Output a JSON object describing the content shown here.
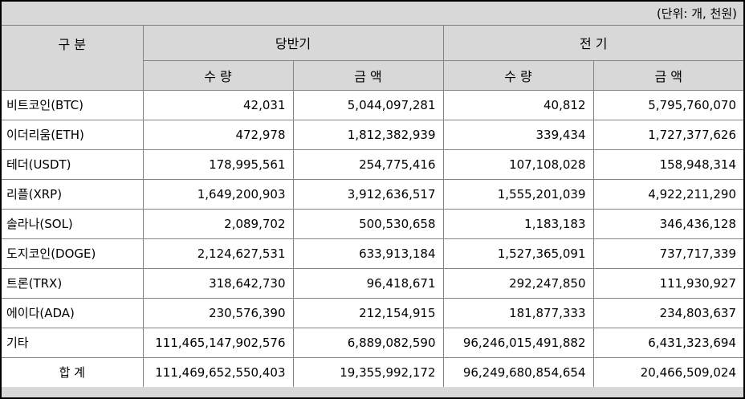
{
  "unit_note": "(단위: 개, 천원)",
  "colors": {
    "sheet_background": "#d8d8d8",
    "cell_background": "#ffffff",
    "grid_line": "#848484",
    "outer_border": "#000000",
    "text": "#000000"
  },
  "table": {
    "category_header": "구 분",
    "current_period_header": "당반기",
    "previous_period_header": "전 기",
    "quantity_header": "수 량",
    "amount_header": "금 액",
    "rows": [
      {
        "label": "비트코인(BTC)",
        "cur_qty": "42,031",
        "cur_amt": "5,044,097,281",
        "prev_qty": "40,812",
        "prev_amt": "5,795,760,070"
      },
      {
        "label": "이더리움(ETH)",
        "cur_qty": "472,978",
        "cur_amt": "1,812,382,939",
        "prev_qty": "339,434",
        "prev_amt": "1,727,377,626"
      },
      {
        "label": "테더(USDT)",
        "cur_qty": "178,995,561",
        "cur_amt": "254,775,416",
        "prev_qty": "107,108,028",
        "prev_amt": "158,948,314"
      },
      {
        "label": "리플(XRP)",
        "cur_qty": "1,649,200,903",
        "cur_amt": "3,912,636,517",
        "prev_qty": "1,555,201,039",
        "prev_amt": "4,922,211,290"
      },
      {
        "label": "솔라나(SOL)",
        "cur_qty": "2,089,702",
        "cur_amt": "500,530,658",
        "prev_qty": "1,183,183",
        "prev_amt": "346,436,128"
      },
      {
        "label": "도지코인(DOGE)",
        "cur_qty": "2,124,627,531",
        "cur_amt": "633,913,184",
        "prev_qty": "1,527,365,091",
        "prev_amt": "737,717,339"
      },
      {
        "label": "트론(TRX)",
        "cur_qty": "318,642,730",
        "cur_amt": "96,418,671",
        "prev_qty": "292,247,850",
        "prev_amt": "111,930,927"
      },
      {
        "label": "에이다(ADA)",
        "cur_qty": "230,576,390",
        "cur_amt": "212,154,915",
        "prev_qty": "181,877,333",
        "prev_amt": "234,803,637"
      },
      {
        "label": "기타",
        "cur_qty": "111,465,147,902,576",
        "cur_amt": "6,889,082,590",
        "prev_qty": "96,246,015,491,882",
        "prev_amt": "6,431,323,694"
      }
    ],
    "total": {
      "label": "합 계",
      "cur_qty": "111,469,652,550,403",
      "cur_amt": "19,355,992,172",
      "prev_qty": "96,249,680,854,654",
      "prev_amt": "20,466,509,024"
    }
  }
}
